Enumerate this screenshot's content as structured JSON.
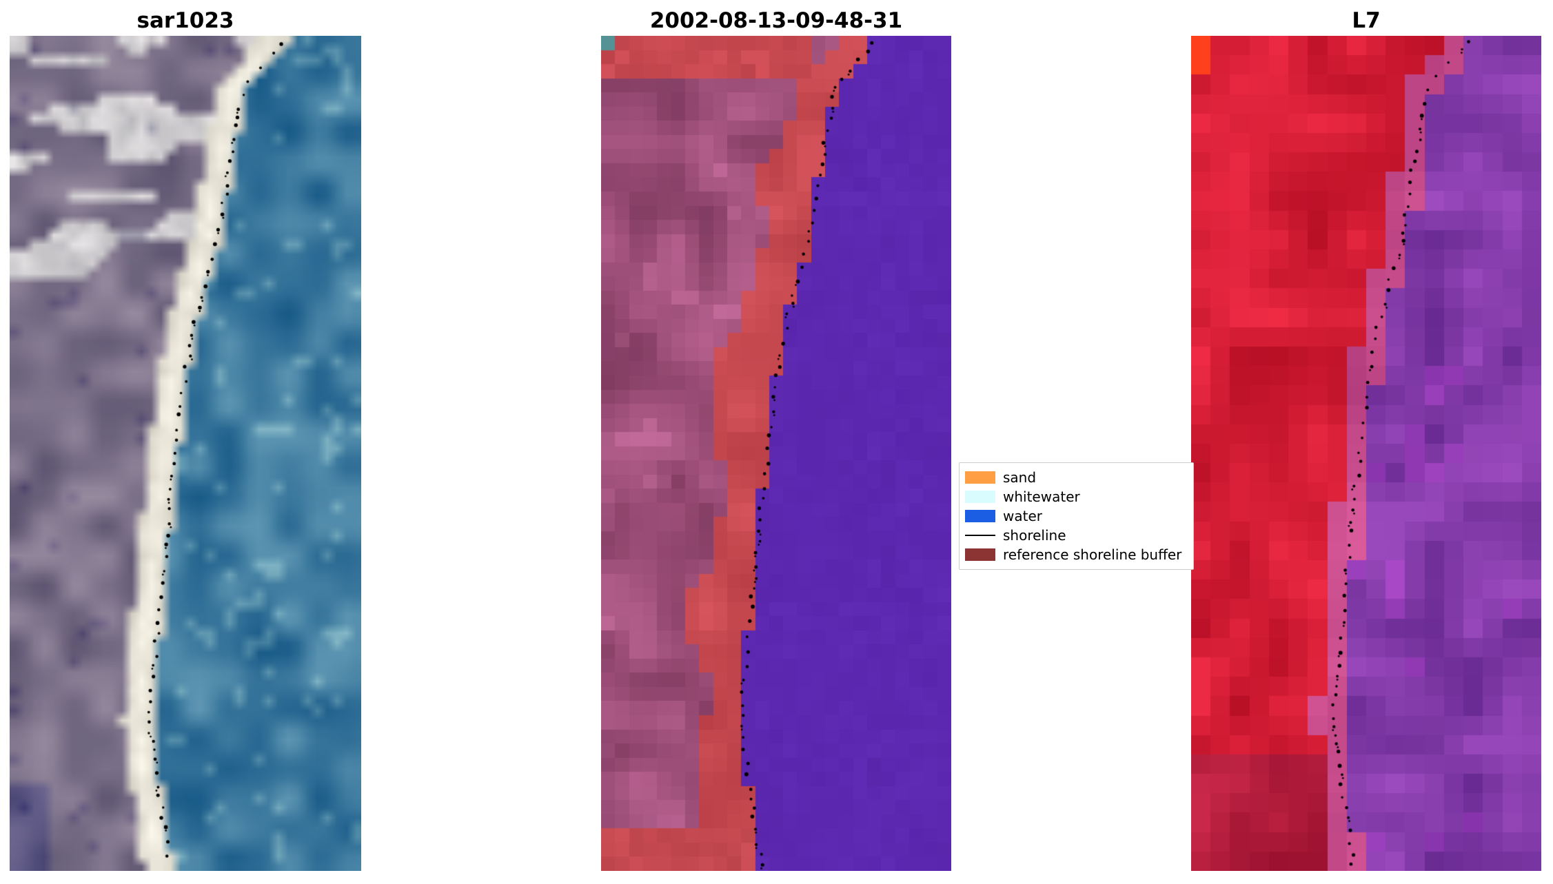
{
  "figure": {
    "background": "#ffffff",
    "panels": [
      {
        "title": "sar1023"
      },
      {
        "title": "2002-08-13-09-48-31"
      },
      {
        "title": "L7"
      }
    ],
    "legend": {
      "entries": [
        {
          "label": "sand",
          "color": "#FF9E42",
          "kind": "patch"
        },
        {
          "label": "whitewater",
          "color": "#D9FCFF",
          "kind": "patch"
        },
        {
          "label": "water",
          "color": "#1B5EE4",
          "kind": "patch"
        },
        {
          "label": "shoreline",
          "color": "#000000",
          "kind": "line"
        },
        {
          "label": "reference shoreline buffer",
          "color": "#8C3434",
          "kind": "patch"
        }
      ]
    }
  },
  "chart_data": {
    "type": "image-panels",
    "panels": [
      {
        "index": 0,
        "title": "sar1023",
        "kind": "rgb-satellite-image",
        "content": "gray-violet land on left, bright white sand beach strip, blue water on right, dotted black detected shoreline"
      },
      {
        "index": 1,
        "title": "2002-08-13-09-48-31",
        "kind": "classified-image",
        "content": "water classified purple on right, indian-red reference shoreline buffer band along coast, mauve land on left, teal pixel top-left corner, dotted black shoreline"
      },
      {
        "index": 2,
        "title": "L7",
        "kind": "false-color-satellite-image",
        "content": "red land on left, purple water on right, bright orange pixel top-left corner, dotted black shoreline"
      }
    ],
    "legend": {
      "position": "between middle and right panels, vertically centered",
      "entries": [
        {
          "label": "sand",
          "color": "#FF9E42",
          "kind": "patch"
        },
        {
          "label": "whitewater",
          "color": "#D9FCFF",
          "kind": "patch"
        },
        {
          "label": "water",
          "color": "#1B5EE4",
          "kind": "patch"
        },
        {
          "label": "shoreline",
          "color": "#000000",
          "kind": "line"
        },
        {
          "label": "reference shoreline buffer",
          "color": "#8C3434",
          "kind": "patch"
        }
      ]
    },
    "shoreline_path_normalized": [
      [
        0.0,
        0.79
      ],
      [
        0.06,
        0.665
      ],
      [
        0.15,
        0.625
      ],
      [
        0.25,
        0.585
      ],
      [
        0.33,
        0.53
      ],
      [
        0.42,
        0.49
      ],
      [
        0.52,
        0.462
      ],
      [
        0.62,
        0.437
      ],
      [
        0.72,
        0.415
      ],
      [
        0.82,
        0.392
      ],
      [
        0.9,
        0.418
      ],
      [
        1.0,
        0.452
      ]
    ]
  },
  "palette": {
    "sar": {
      "waterBase": [
        52,
        112,
        150
      ],
      "beach": [
        233,
        230,
        217
      ],
      "land": [
        115,
        107,
        128
      ]
    },
    "classified": {
      "water": [
        92,
        40,
        177
      ],
      "buffer": [
        198,
        72,
        79
      ],
      "land": [
        154,
        76,
        118
      ],
      "teal": [
        84,
        146,
        150
      ]
    },
    "l7": {
      "red": [
        203,
        24,
        48
      ],
      "purple": [
        126,
        56,
        164
      ],
      "pink": [
        194,
        72,
        136
      ],
      "orange": [
        255,
        64,
        28
      ]
    }
  }
}
